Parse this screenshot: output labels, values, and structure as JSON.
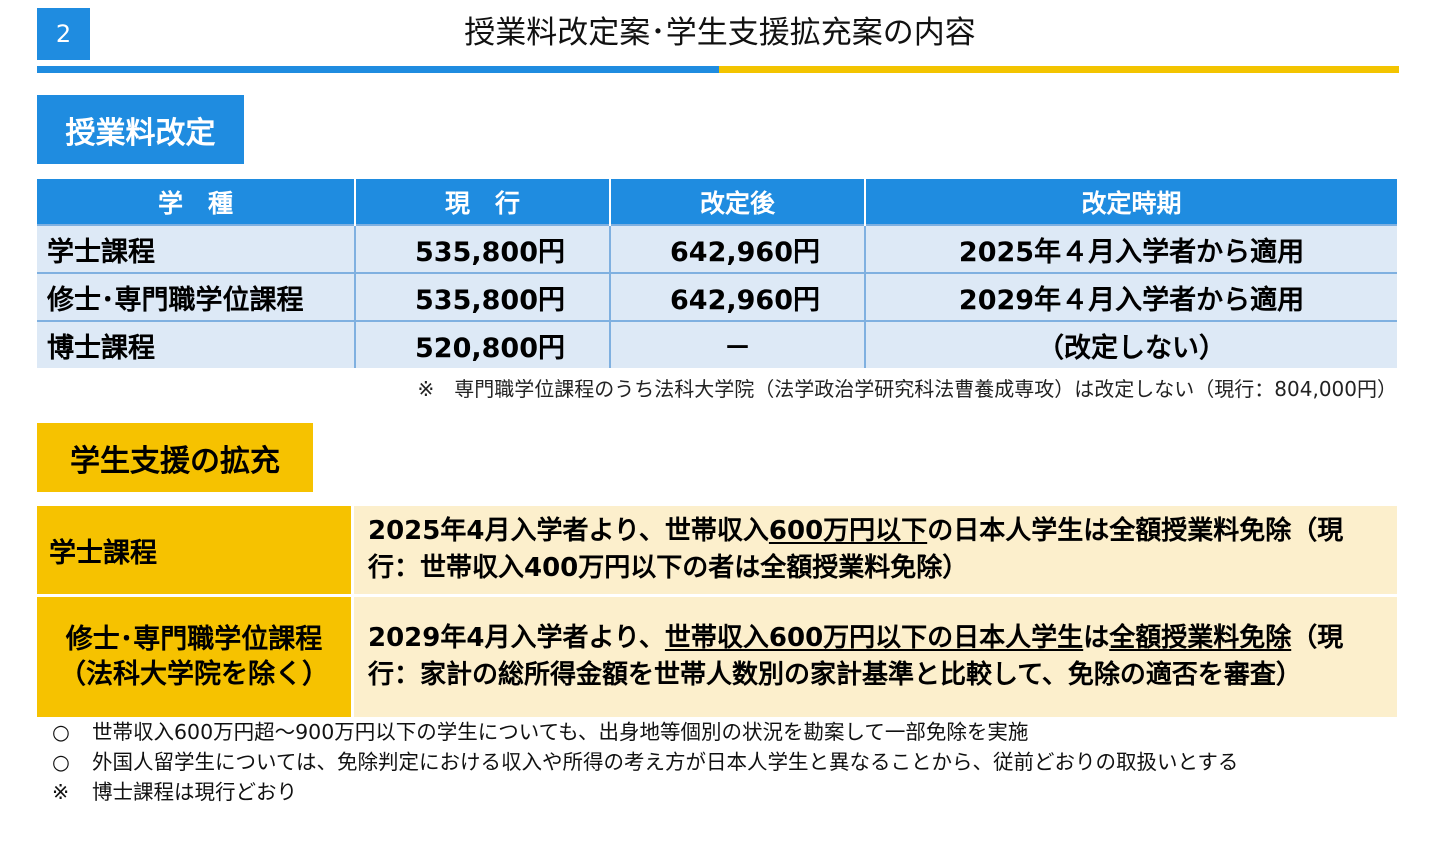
{
  "header": {
    "page_number": "2",
    "title": "授業料改定案･学生支援拡充案の内容"
  },
  "tuition": {
    "section_title": "授業料改定",
    "columns": [
      "学　種",
      "現　行",
      "改定後",
      "改定時期"
    ],
    "rows": [
      {
        "type": "学士課程",
        "current": "535,800円",
        "revised": "642,960円",
        "timing": "2025年４月入学者から適用"
      },
      {
        "type": "修士･専門職学位課程",
        "current": "535,800円",
        "revised": "642,960円",
        "timing": "2029年４月入学者から適用"
      },
      {
        "type": "博士課程",
        "current": "520,800円",
        "revised": "－",
        "timing": "（改定しない）"
      }
    ],
    "note": "※　専門職学位課程のうち法科大学院（法学政治学研究科法曹養成専攻）は改定しない（現行：804,000円）"
  },
  "support": {
    "section_title": "学生支援の拡充",
    "rows": [
      {
        "head": "学士課程",
        "body_pre": "2025年4月入学者より、世帯収入",
        "body_u1": "600万円以下",
        "body_mid": "の日本人学生は全額授業料免除（現行：世帯収入400万円以下の者は全額授業料免除）"
      },
      {
        "head_line1": "修士･専門職学位課程",
        "head_line2": "（法科大学院を除く）",
        "body_pre": "2029年4月入学者より、",
        "body_u1": "世帯収入600万円以下の日本人学生",
        "body_mid": "は",
        "body_u2": "全額授業料免除",
        "body_post": "（現行：家計の総所得金額を世帯人数別の家計基準と比較して、免除の適否を審査）"
      }
    ]
  },
  "notes": [
    {
      "mark": "○",
      "text": "世帯収入600万円超～900万円以下の学生についても、出身地等個別の状況を勘案して一部免除を実施"
    },
    {
      "mark": "○",
      "text": "外国人留学生については、免除判定における収入や所得の考え方が日本人学生と異なることから、従前どおりの取扱いとする"
    },
    {
      "mark": "※",
      "text": "博士課程は現行どおり"
    }
  ],
  "colors": {
    "blue": "#1f8ce0",
    "yellow": "#f6c200",
    "light_blue": "#dde9f6",
    "light_yellow": "#fcefcc"
  }
}
